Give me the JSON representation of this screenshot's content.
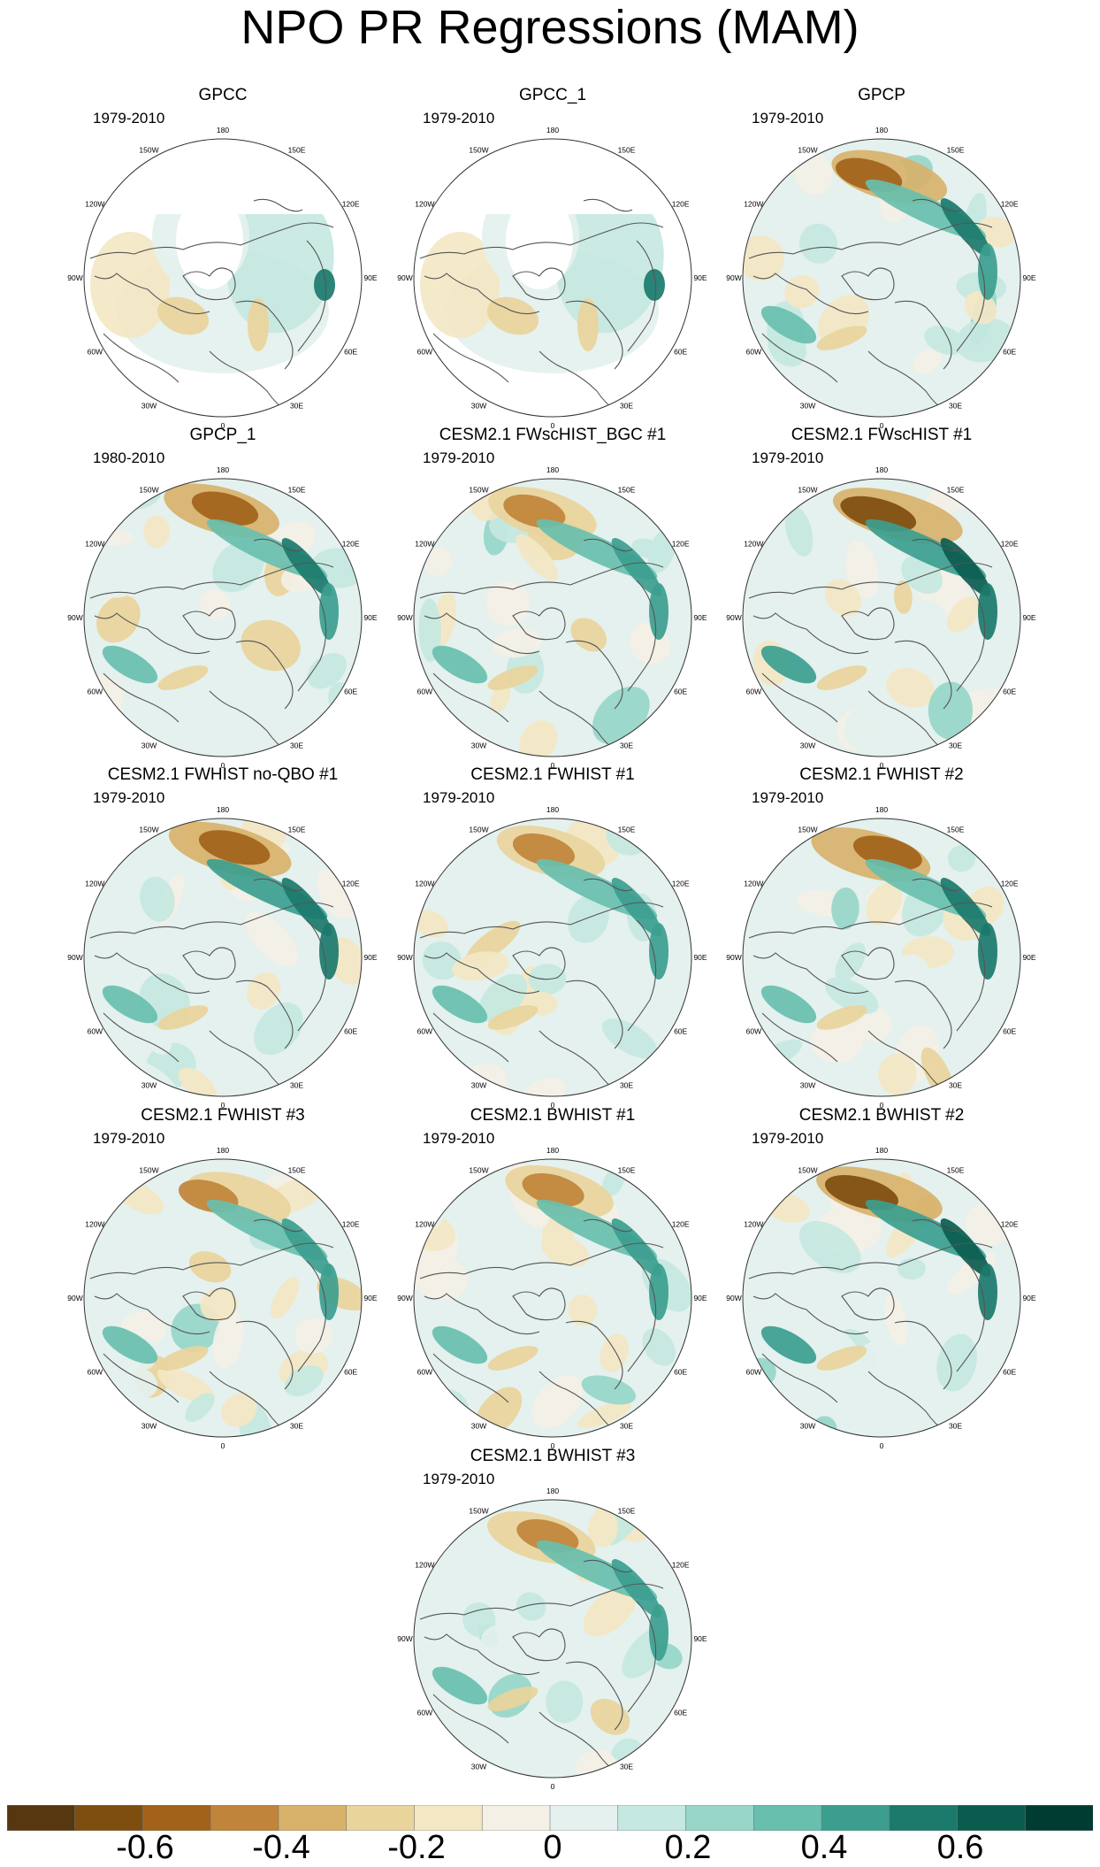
{
  "title": "NPO PR Regressions (MAM)",
  "lon_labels": [
    "180",
    "150E",
    "120E",
    "90E",
    "60E",
    "30E",
    "0",
    "30W",
    "60W",
    "90W",
    "120W",
    "150W"
  ],
  "panels": [
    {
      "title": "GPCC",
      "period": "1979-2010",
      "masked": true,
      "signal": 0.25
    },
    {
      "title": "GPCC_1",
      "period": "1979-2010",
      "masked": true,
      "signal": 0.25
    },
    {
      "title": "GPCP",
      "period": "1979-2010",
      "masked": false,
      "signal": 0.6
    },
    {
      "title": "GPCP_1",
      "period": "1980-2010",
      "masked": false,
      "signal": 0.6
    },
    {
      "title": "CESM2.1 FWscHIST_BGC #1",
      "period": "1979-2010",
      "masked": false,
      "signal": 0.5
    },
    {
      "title": "CESM2.1 FWscHIST #1",
      "period": "1979-2010",
      "masked": false,
      "signal": 0.8
    },
    {
      "title": "CESM2.1 FWHIST no-QBO #1",
      "period": "1979-2010",
      "masked": false,
      "signal": 0.7
    },
    {
      "title": "CESM2.1 FWHIST #1",
      "period": "1979-2010",
      "masked": false,
      "signal": 0.5
    },
    {
      "title": "CESM2.1 FWHIST #2",
      "period": "1979-2010",
      "masked": false,
      "signal": 0.65
    },
    {
      "title": "CESM2.1 FWHIST #3",
      "period": "1979-2010",
      "masked": false,
      "signal": 0.45
    },
    {
      "title": "CESM2.1 BWHIST #1",
      "period": "1979-2010",
      "masked": false,
      "signal": 0.5
    },
    {
      "title": "CESM2.1 BWHIST #2",
      "period": "1979-2010",
      "masked": false,
      "signal": 0.75
    },
    {
      "title": "CESM2.1 BWHIST #3",
      "period": "1979-2010",
      "masked": false,
      "signal": 0.5
    }
  ],
  "colorbar": {
    "colors": [
      "#573710",
      "#7e4d10",
      "#a2621a",
      "#c0843a",
      "#d8b26b",
      "#e9d49c",
      "#f3e7c4",
      "#f4f0e6",
      "#e4f1ee",
      "#c5e8e1",
      "#97d6c9",
      "#68bfae",
      "#3c9e8f",
      "#1b7a6c",
      "#0b5c4f",
      "#003c31"
    ],
    "labels": [
      "-0.6",
      "-0.4",
      "-0.2",
      "0",
      "0.2",
      "0.4",
      "0.6"
    ],
    "label_values": [
      -0.6,
      -0.4,
      -0.2,
      0,
      0.2,
      0.4,
      0.6
    ],
    "min": -0.8,
    "max": 0.8
  }
}
